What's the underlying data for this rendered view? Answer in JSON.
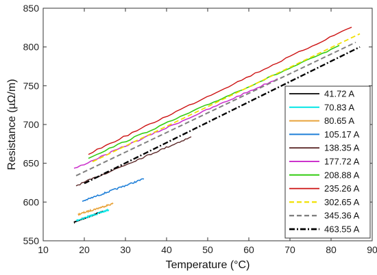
{
  "chart_data": {
    "type": "line",
    "title": "",
    "xlabel": "Temperature (°C)",
    "ylabel": "Resistance (µΩ/m)",
    "xlim": [
      10,
      90
    ],
    "ylim": [
      550,
      850
    ],
    "xticks": [
      10,
      20,
      30,
      40,
      50,
      60,
      70,
      80,
      90
    ],
    "yticks": [
      550,
      600,
      650,
      700,
      750,
      800,
      850
    ],
    "grid": false,
    "legend_position": "bottom-right",
    "series": [
      {
        "name": "41.72 A",
        "color": "#000000",
        "dash": "solid",
        "width": 1.4,
        "x": [
          17.5,
          24.5
        ],
        "y": [
          574,
          588
        ]
      },
      {
        "name": "70.83 A",
        "color": "#00e5e5",
        "dash": "solid",
        "width": 1.6,
        "x": [
          18,
          26
        ],
        "y": [
          576,
          590
        ]
      },
      {
        "name": "80.65 A",
        "color": "#e8a33a",
        "dash": "solid",
        "width": 1.6,
        "x": [
          18.5,
          27
        ],
        "y": [
          584,
          598
        ]
      },
      {
        "name": "105.17 A",
        "color": "#1e7fd8",
        "dash": "solid",
        "width": 1.6,
        "x": [
          19.5,
          34.5
        ],
        "y": [
          601,
          630
        ]
      },
      {
        "name": "138.35 A",
        "color": "#5b2828",
        "dash": "solid",
        "width": 1.4,
        "x": [
          18,
          46
        ],
        "y": [
          621,
          684
        ]
      },
      {
        "name": "177.72 A",
        "color": "#cc33cc",
        "dash": "solid",
        "width": 1.6,
        "x": [
          17.5,
          67
        ],
        "y": [
          643,
          759
        ]
      },
      {
        "name": "208.88 A",
        "color": "#33cc11",
        "dash": "solid",
        "width": 1.6,
        "x": [
          21,
          82
        ],
        "y": [
          657,
          801
        ]
      },
      {
        "name": "235.26 A",
        "color": "#cc1111",
        "dash": "solid",
        "width": 1.4,
        "x": [
          21,
          85
        ],
        "y": [
          662,
          826
        ]
      },
      {
        "name": "302.65 A",
        "color": "#f0e000",
        "dash": "dashed",
        "width": 1.8,
        "x": [
          22,
          87
        ],
        "y": [
          652,
          817
        ]
      },
      {
        "name": "345.36 A",
        "color": "#808080",
        "dash": "dashed",
        "width": 2.0,
        "x": [
          18,
          86
        ],
        "y": [
          634,
          806
        ]
      },
      {
        "name": "463.55 A",
        "color": "#000000",
        "dash": "dashdot",
        "width": 2.4,
        "x": [
          20,
          87
        ],
        "y": [
          624,
          800
        ]
      }
    ]
  }
}
